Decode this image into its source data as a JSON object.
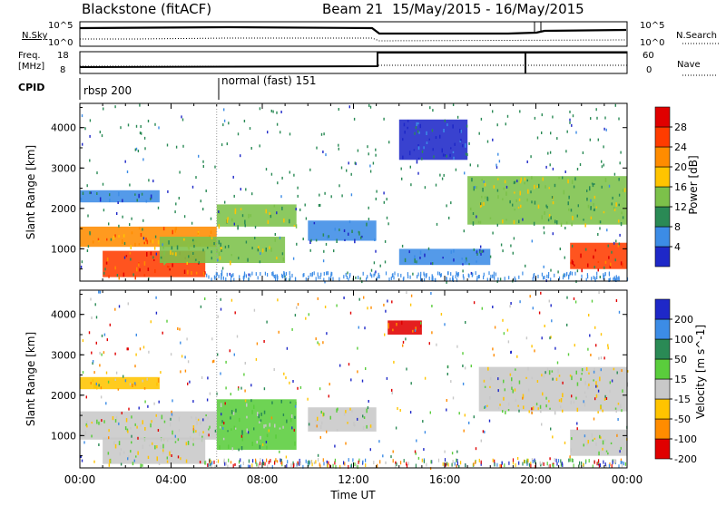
{
  "header": {
    "title": "Blackstone (fitACF)",
    "beam": "Beam 21",
    "date_range": "15/May/2015 - 16/May/2015"
  },
  "summary_panel": {
    "nsky_label": "N.Sky",
    "nsky_ticks": [
      "10^5",
      "10^0"
    ],
    "nsearch_label": "N.Search",
    "nsearch_ticks": [
      "10^5",
      "10^0"
    ],
    "freq_label": "Freq.",
    "freq_unit": "[MHz]",
    "freq_ticks": [
      "18",
      "8"
    ],
    "nave_label": "Nave",
    "nave_ticks": [
      "60",
      "0"
    ],
    "cpid_label": "CPID",
    "cpid_entries": [
      {
        "label": "rbsp 200",
        "start_hour": 0
      },
      {
        "label": "normal (fast) 151",
        "start_hour": 6
      }
    ]
  },
  "chart_data": [
    {
      "type": "heatmap",
      "title": "",
      "xlabel": "Time UT",
      "ylabel": "Slant Range [km]",
      "xlim_hours": [
        0,
        24
      ],
      "ylim": [
        200,
        4600
      ],
      "y_ticks": [
        "1000",
        "2000",
        "3000",
        "4000"
      ],
      "colorbar": {
        "label": "Power [dB]",
        "ticks": [
          "4",
          "8",
          "12",
          "16",
          "20",
          "24",
          "28"
        ],
        "colors": [
          "#1e28c8",
          "#3c8ce6",
          "#2a8a55",
          "#7cc14a",
          "#ffc400",
          "#ff8c00",
          "#ff3c00",
          "#e00000"
        ]
      },
      "bands": [
        {
          "t0": 0.0,
          "t1": 6.0,
          "r0": 1050,
          "r1": 1550,
          "level": 5
        },
        {
          "t0": 0.0,
          "t1": 3.5,
          "r0": 2150,
          "r1": 2450,
          "level": 1
        },
        {
          "t0": 1.0,
          "t1": 5.5,
          "r0": 300,
          "r1": 950,
          "level": 6
        },
        {
          "t0": 3.5,
          "t1": 9.0,
          "r0": 650,
          "r1": 1300,
          "level": 3
        },
        {
          "t0": 6.0,
          "t1": 9.5,
          "r0": 1550,
          "r1": 2100,
          "level": 3
        },
        {
          "t0": 10.0,
          "t1": 13.0,
          "r0": 1200,
          "r1": 1700,
          "level": 1
        },
        {
          "t0": 14.0,
          "t1": 18.0,
          "r0": 600,
          "r1": 1000,
          "level": 1
        },
        {
          "t0": 14.0,
          "t1": 17.0,
          "r0": 3200,
          "r1": 4200,
          "level": 0
        },
        {
          "t0": 17.0,
          "t1": 24.0,
          "r0": 1600,
          "r1": 2800,
          "level": 3
        },
        {
          "t0": 21.5,
          "t1": 24.0,
          "r0": 500,
          "r1": 1150,
          "level": 6
        }
      ]
    },
    {
      "type": "heatmap",
      "title": "",
      "xlabel": "Time UT",
      "ylabel": "Slant Range [km]",
      "xlim_hours": [
        0,
        24
      ],
      "ylim": [
        200,
        4600
      ],
      "x_ticks": [
        "00:00",
        "04:00",
        "08:00",
        "12:00",
        "16:00",
        "20:00",
        "00:00"
      ],
      "y_ticks": [
        "1000",
        "2000",
        "3000",
        "4000"
      ],
      "colorbar": {
        "label": "Velocity [m s^-1]",
        "ticks": [
          "200",
          "100",
          "50",
          "15",
          "-15",
          "-50",
          "-100",
          "-200"
        ],
        "colors": [
          "#1e28c8",
          "#3c8ce6",
          "#2a8a55",
          "#5acd3c",
          "#c8c8c8",
          "#ffc400",
          "#ff8c00",
          "#e00000"
        ]
      },
      "bands": [
        {
          "t0": 0.0,
          "t1": 6.0,
          "r0": 900,
          "r1": 1600,
          "level": 4
        },
        {
          "t0": 0.0,
          "t1": 3.5,
          "r0": 2150,
          "r1": 2450,
          "level": 5
        },
        {
          "t0": 1.0,
          "t1": 5.5,
          "r0": 300,
          "r1": 950,
          "level": 4
        },
        {
          "t0": 6.0,
          "t1": 9.5,
          "r0": 650,
          "r1": 1900,
          "level": 3
        },
        {
          "t0": 10.0,
          "t1": 13.0,
          "r0": 1100,
          "r1": 1700,
          "level": 4
        },
        {
          "t0": 13.5,
          "t1": 15.0,
          "r0": 3500,
          "r1": 3850,
          "level": 7
        },
        {
          "t0": 17.5,
          "t1": 24.0,
          "r0": 1600,
          "r1": 2700,
          "level": 4
        },
        {
          "t0": 21.5,
          "t1": 24.0,
          "r0": 500,
          "r1": 1150,
          "level": 4
        }
      ]
    }
  ]
}
